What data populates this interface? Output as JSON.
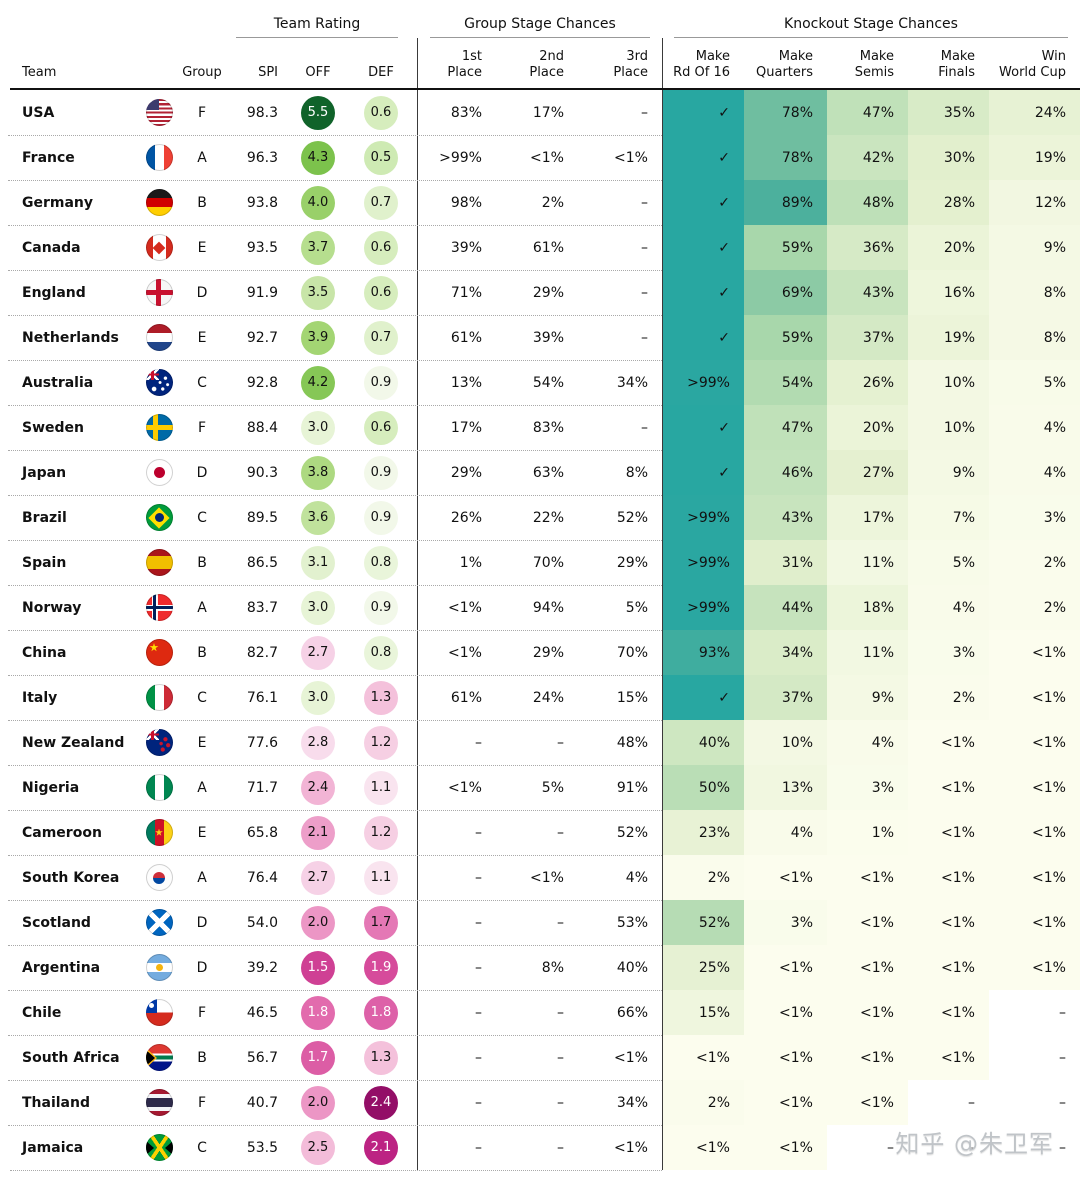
{
  "watermark": "知乎 @朱卫军",
  "header": {
    "group_titles": {
      "team_rating": "Team Rating",
      "group_stage": "Group Stage Chances",
      "knockout_stage": "Knockout Stage Chances"
    },
    "columns": {
      "team": "Team",
      "group": "Group",
      "spi": "SPI",
      "off": "OFF",
      "def": "DEF",
      "p1": "1st\nPlace",
      "p2": "2nd\nPlace",
      "p3": "3rd\nPlace",
      "rd16": "Make\nRd Of 16",
      "qf": "Make\nQuarters",
      "sf": "Make\nSemis",
      "fin": "Make\nFinals",
      "win": "Win\nWorld Cup"
    }
  },
  "colors": {
    "pct_scale": [
      [
        0,
        "#fcfdee"
      ],
      [
        0.3,
        "#e2efcd"
      ],
      [
        0.62,
        "#a2d4a8"
      ],
      [
        0.86,
        "#56b39c"
      ],
      [
        1,
        "#28a7a1"
      ]
    ],
    "off_scale": [
      [
        1.4,
        "#c9318c"
      ],
      [
        1.8,
        "#e26bad"
      ],
      [
        2.0,
        "#ec96c5"
      ],
      [
        2.5,
        "#f3bcd9"
      ],
      [
        2.8,
        "#f8dcec"
      ],
      [
        2.92,
        "#fcf4f2"
      ],
      [
        3.0,
        "#e7f4d6"
      ],
      [
        3.3,
        "#d7ecc0"
      ],
      [
        3.6,
        "#c0e29c"
      ],
      [
        3.9,
        "#a3d573"
      ],
      [
        4.3,
        "#7cc24c"
      ],
      [
        4.8,
        "#3fa03a"
      ],
      [
        5.5,
        "#10632a"
      ]
    ],
    "def_scale": [
      [
        0.4,
        "#c6e6a8"
      ],
      [
        0.6,
        "#d6edbd"
      ],
      [
        0.8,
        "#e9f5da"
      ],
      [
        0.95,
        "#f7faf0"
      ],
      [
        1.05,
        "#fbeff5"
      ],
      [
        1.2,
        "#f6cfe3"
      ],
      [
        1.4,
        "#f1b3d3"
      ],
      [
        1.7,
        "#e478b5"
      ],
      [
        1.9,
        "#d64b9b"
      ],
      [
        2.1,
        "#bc2383"
      ],
      [
        2.4,
        "#930e67"
      ]
    ],
    "divider": "#3a3a3a",
    "header_border": "#111111",
    "row_dotted": "#a9a9a9"
  },
  "chart_data": {
    "type": "table",
    "columns": [
      "Team",
      "Group",
      "SPI",
      "OFF",
      "DEF",
      "1st Place",
      "2nd Place",
      "3rd Place",
      "Make Rd Of 16",
      "Make Quarters",
      "Make Semis",
      "Make Finals",
      "Win World Cup"
    ],
    "rows": [
      {
        "team": "USA",
        "flag_icon": "usa-flag-icon",
        "group": "F",
        "spi": "98.3",
        "off": "5.5",
        "def": "0.6",
        "p1": "83%",
        "p2": "17%",
        "p3": "–",
        "rd16": "✓",
        "qf": "78%",
        "sf": "47%",
        "fin": "35%",
        "win": "24%"
      },
      {
        "team": "France",
        "flag_icon": "france-flag-icon",
        "group": "A",
        "spi": "96.3",
        "off": "4.3",
        "def": "0.5",
        "p1": ">99%",
        "p2": "<1%",
        "p3": "<1%",
        "rd16": "✓",
        "qf": "78%",
        "sf": "42%",
        "fin": "30%",
        "win": "19%"
      },
      {
        "team": "Germany",
        "flag_icon": "germany-flag-icon",
        "group": "B",
        "spi": "93.8",
        "off": "4.0",
        "def": "0.7",
        "p1": "98%",
        "p2": "2%",
        "p3": "–",
        "rd16": "✓",
        "qf": "89%",
        "sf": "48%",
        "fin": "28%",
        "win": "12%"
      },
      {
        "team": "Canada",
        "flag_icon": "canada-flag-icon",
        "group": "E",
        "spi": "93.5",
        "off": "3.7",
        "def": "0.6",
        "p1": "39%",
        "p2": "61%",
        "p3": "–",
        "rd16": "✓",
        "qf": "59%",
        "sf": "36%",
        "fin": "20%",
        "win": "9%"
      },
      {
        "team": "England",
        "flag_icon": "england-flag-icon",
        "group": "D",
        "spi": "91.9",
        "off": "3.5",
        "def": "0.6",
        "p1": "71%",
        "p2": "29%",
        "p3": "–",
        "rd16": "✓",
        "qf": "69%",
        "sf": "43%",
        "fin": "16%",
        "win": "8%"
      },
      {
        "team": "Netherlands",
        "flag_icon": "netherlands-flag-icon",
        "group": "E",
        "spi": "92.7",
        "off": "3.9",
        "def": "0.7",
        "p1": "61%",
        "p2": "39%",
        "p3": "–",
        "rd16": "✓",
        "qf": "59%",
        "sf": "37%",
        "fin": "19%",
        "win": "8%"
      },
      {
        "team": "Australia",
        "flag_icon": "australia-flag-icon",
        "group": "C",
        "spi": "92.8",
        "off": "4.2",
        "def": "0.9",
        "p1": "13%",
        "p2": "54%",
        "p3": "34%",
        "rd16": ">99%",
        "qf": "54%",
        "sf": "26%",
        "fin": "10%",
        "win": "5%"
      },
      {
        "team": "Sweden",
        "flag_icon": "sweden-flag-icon",
        "group": "F",
        "spi": "88.4",
        "off": "3.0",
        "def": "0.6",
        "p1": "17%",
        "p2": "83%",
        "p3": "–",
        "rd16": "✓",
        "qf": "47%",
        "sf": "20%",
        "fin": "10%",
        "win": "4%"
      },
      {
        "team": "Japan",
        "flag_icon": "japan-flag-icon",
        "group": "D",
        "spi": "90.3",
        "off": "3.8",
        "def": "0.9",
        "p1": "29%",
        "p2": "63%",
        "p3": "8%",
        "rd16": "✓",
        "qf": "46%",
        "sf": "27%",
        "fin": "9%",
        "win": "4%"
      },
      {
        "team": "Brazil",
        "flag_icon": "brazil-flag-icon",
        "group": "C",
        "spi": "89.5",
        "off": "3.6",
        "def": "0.9",
        "p1": "26%",
        "p2": "22%",
        "p3": "52%",
        "rd16": ">99%",
        "qf": "43%",
        "sf": "17%",
        "fin": "7%",
        "win": "3%"
      },
      {
        "team": "Spain",
        "flag_icon": "spain-flag-icon",
        "group": "B",
        "spi": "86.5",
        "off": "3.1",
        "def": "0.8",
        "p1": "1%",
        "p2": "70%",
        "p3": "29%",
        "rd16": ">99%",
        "qf": "31%",
        "sf": "11%",
        "fin": "5%",
        "win": "2%"
      },
      {
        "team": "Norway",
        "flag_icon": "norway-flag-icon",
        "group": "A",
        "spi": "83.7",
        "off": "3.0",
        "def": "0.9",
        "p1": "<1%",
        "p2": "94%",
        "p3": "5%",
        "rd16": ">99%",
        "qf": "44%",
        "sf": "18%",
        "fin": "4%",
        "win": "2%"
      },
      {
        "team": "China",
        "flag_icon": "china-flag-icon",
        "group": "B",
        "spi": "82.7",
        "off": "2.7",
        "def": "0.8",
        "p1": "<1%",
        "p2": "29%",
        "p3": "70%",
        "rd16": "93%",
        "qf": "34%",
        "sf": "11%",
        "fin": "3%",
        "win": "<1%"
      },
      {
        "team": "Italy",
        "flag_icon": "italy-flag-icon",
        "group": "C",
        "spi": "76.1",
        "off": "3.0",
        "def": "1.3",
        "p1": "61%",
        "p2": "24%",
        "p3": "15%",
        "rd16": "✓",
        "qf": "37%",
        "sf": "9%",
        "fin": "2%",
        "win": "<1%"
      },
      {
        "team": "New Zealand",
        "flag_icon": "new-zealand-flag-icon",
        "group": "E",
        "spi": "77.6",
        "off": "2.8",
        "def": "1.2",
        "p1": "–",
        "p2": "–",
        "p3": "48%",
        "rd16": "40%",
        "qf": "10%",
        "sf": "4%",
        "fin": "<1%",
        "win": "<1%"
      },
      {
        "team": "Nigeria",
        "flag_icon": "nigeria-flag-icon",
        "group": "A",
        "spi": "71.7",
        "off": "2.4",
        "def": "1.1",
        "p1": "<1%",
        "p2": "5%",
        "p3": "91%",
        "rd16": "50%",
        "qf": "13%",
        "sf": "3%",
        "fin": "<1%",
        "win": "<1%"
      },
      {
        "team": "Cameroon",
        "flag_icon": "cameroon-flag-icon",
        "group": "E",
        "spi": "65.8",
        "off": "2.1",
        "def": "1.2",
        "p1": "–",
        "p2": "–",
        "p3": "52%",
        "rd16": "23%",
        "qf": "4%",
        "sf": "1%",
        "fin": "<1%",
        "win": "<1%"
      },
      {
        "team": "South Korea",
        "flag_icon": "south-korea-flag-icon",
        "group": "A",
        "spi": "76.4",
        "off": "2.7",
        "def": "1.1",
        "p1": "–",
        "p2": "<1%",
        "p3": "4%",
        "rd16": "2%",
        "qf": "<1%",
        "sf": "<1%",
        "fin": "<1%",
        "win": "<1%"
      },
      {
        "team": "Scotland",
        "flag_icon": "scotland-flag-icon",
        "group": "D",
        "spi": "54.0",
        "off": "2.0",
        "def": "1.7",
        "p1": "–",
        "p2": "–",
        "p3": "53%",
        "rd16": "52%",
        "qf": "3%",
        "sf": "<1%",
        "fin": "<1%",
        "win": "<1%"
      },
      {
        "team": "Argentina",
        "flag_icon": "argentina-flag-icon",
        "group": "D",
        "spi": "39.2",
        "off": "1.5",
        "def": "1.9",
        "p1": "–",
        "p2": "8%",
        "p3": "40%",
        "rd16": "25%",
        "qf": "<1%",
        "sf": "<1%",
        "fin": "<1%",
        "win": "<1%"
      },
      {
        "team": "Chile",
        "flag_icon": "chile-flag-icon",
        "group": "F",
        "spi": "46.5",
        "off": "1.8",
        "def": "1.8",
        "p1": "–",
        "p2": "–",
        "p3": "66%",
        "rd16": "15%",
        "qf": "<1%",
        "sf": "<1%",
        "fin": "<1%",
        "win": "–"
      },
      {
        "team": "South Africa",
        "flag_icon": "south-africa-flag-icon",
        "group": "B",
        "spi": "56.7",
        "off": "1.7",
        "def": "1.3",
        "p1": "–",
        "p2": "–",
        "p3": "<1%",
        "rd16": "<1%",
        "qf": "<1%",
        "sf": "<1%",
        "fin": "<1%",
        "win": "–"
      },
      {
        "team": "Thailand",
        "flag_icon": "thailand-flag-icon",
        "group": "F",
        "spi": "40.7",
        "off": "2.0",
        "def": "2.4",
        "p1": "–",
        "p2": "–",
        "p3": "34%",
        "rd16": "2%",
        "qf": "<1%",
        "sf": "<1%",
        "fin": "–",
        "win": "–"
      },
      {
        "team": "Jamaica",
        "flag_icon": "jamaica-flag-icon",
        "group": "C",
        "spi": "53.5",
        "off": "2.5",
        "def": "2.1",
        "p1": "–",
        "p2": "–",
        "p3": "<1%",
        "rd16": "<1%",
        "qf": "<1%",
        "sf": "–",
        "fin": "–",
        "win": "–"
      }
    ]
  }
}
